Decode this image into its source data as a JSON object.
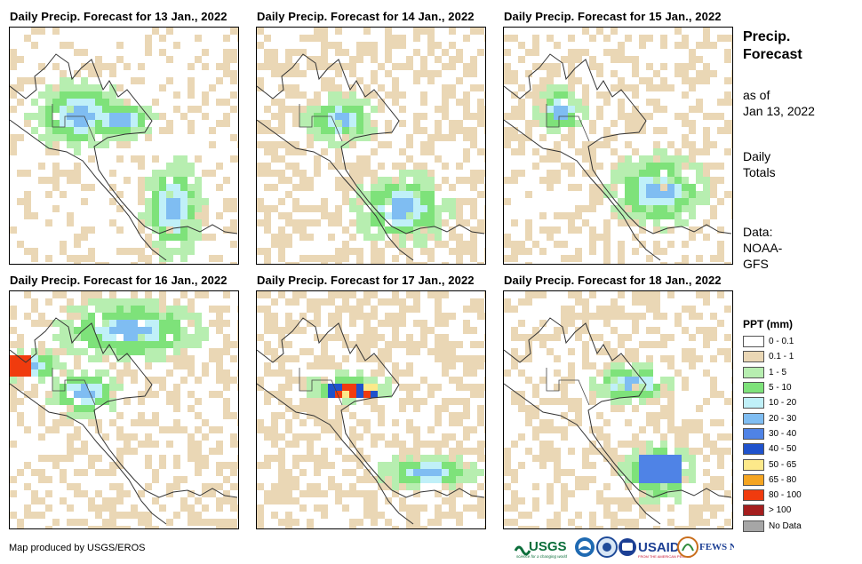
{
  "panels": [
    {
      "title": "Daily Precip. Forecast for 13 Jan., 2022"
    },
    {
      "title": "Daily Precip. Forecast for 14 Jan., 2022"
    },
    {
      "title": "Daily Precip. Forecast for 15 Jan., 2022"
    },
    {
      "title": "Daily Precip. Forecast for 16 Jan., 2022"
    },
    {
      "title": "Daily Precip. Forecast for 17 Jan., 2022"
    },
    {
      "title": "Daily Precip. Forecast for 18 Jan., 2022"
    }
  ],
  "sidebar": {
    "title_line1": "Precip.",
    "title_line2": "Forecast",
    "asof_line1": "as of",
    "asof_line2": "Jan 13, 2022",
    "totals_line1": "Daily",
    "totals_line2": "Totals",
    "data_line1": "Data:",
    "data_line2": "NOAA-",
    "data_line3": "GFS"
  },
  "legend": {
    "title": "PPT (mm)",
    "items": [
      {
        "label": "0 - 0.1",
        "color": "#ffffff"
      },
      {
        "label": "0.1 - 1",
        "color": "#ead7b5"
      },
      {
        "label": "1 - 5",
        "color": "#b7eeb0"
      },
      {
        "label": "5 - 10",
        "color": "#7ee27a"
      },
      {
        "label": "10 - 20",
        "color": "#c0f0f8"
      },
      {
        "label": "20 - 30",
        "color": "#7fbdf2"
      },
      {
        "label": "30 - 40",
        "color": "#4f83e6"
      },
      {
        "label": "40 - 50",
        "color": "#1f52cc"
      },
      {
        "label": "50 - 65",
        "color": "#fde98a"
      },
      {
        "label": "65 - 80",
        "color": "#f5a522"
      },
      {
        "label": "80 - 100",
        "color": "#f03b0e"
      },
      {
        "label": "> 100",
        "color": "#a51e1e"
      },
      {
        "label": "No Data",
        "color": "#a6a6a6"
      }
    ]
  },
  "credit": "Map produced by USGS/EROS",
  "logos": {
    "usgs": "USGS",
    "usgs_tagline": "science for a changing world",
    "usaid": "USAID",
    "usaid_tagline": "FROM THE AMERICAN PEOPLE",
    "fewsnet": "FEWS NET"
  }
}
